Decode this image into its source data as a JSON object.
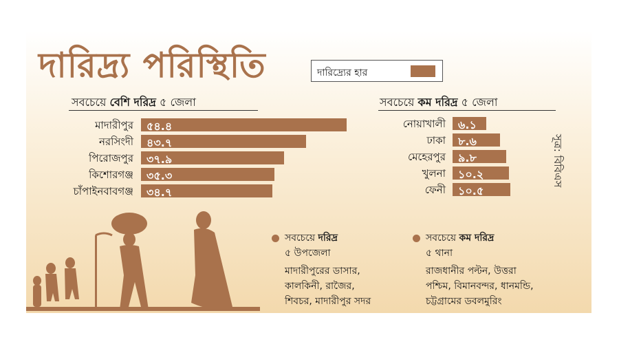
{
  "title": "দারিদ্র্য পরিস্থিতি",
  "legend": {
    "label": "দারিদ্র্যের হার",
    "color": "#a9724c"
  },
  "source": "সূত্র: বিবিএস",
  "chart_data": [
    {
      "type": "bar",
      "orientation": "horizontal",
      "title_prefix": "সবচেয়ে",
      "title_bold": "বেশি দরিদ্র",
      "title_suffix": "৫ জেলা",
      "categories": [
        "মাদারীপুর",
        "নরসিংদী",
        "পিরোজপুর",
        "কিশোরগঞ্জ",
        "চাঁপাইনবাবগঞ্জ"
      ],
      "value_labels": [
        "৫৪.৪",
        "৪৩.৭",
        "৩৭.৯",
        "৩৫.৩",
        "৩৪.৭"
      ],
      "values": [
        54.4,
        43.7,
        37.9,
        35.3,
        34.7
      ]
    },
    {
      "type": "bar",
      "orientation": "horizontal",
      "title_prefix": "সবচেয়ে",
      "title_bold": "কম দরিদ্র",
      "title_suffix": "৫ জেলা",
      "categories": [
        "নোয়াখালী",
        "ঢাকা",
        "মেহেরপুর",
        "খুলনা",
        "ফেনী"
      ],
      "value_labels": [
        "৬.১",
        "৮.৬",
        "৯.৮",
        "১০.২",
        "১০.৫"
      ],
      "values": [
        6.1,
        8.6,
        9.8,
        10.2,
        10.5
      ]
    }
  ],
  "info_left": {
    "prefix": "সবচেয়ে",
    "bold": "দরিদ্র",
    "line2": "৫ উপজেলা",
    "body": [
      "মাদারীপুরের ডাসার,",
      "কালকিনী, রাজৈর,",
      "শিবচর, মাদারীপুর সদর"
    ]
  },
  "info_right": {
    "prefix": "সবচেয়ে",
    "bold": "কম দরিদ্র",
    "line2": "৫ থানা",
    "body": [
      "রাজধানীর পল্টন, উত্তরা",
      "পশ্চিম, বিমানবন্দর, ধানমন্ডি,",
      "চট্টগ্রামের ডবলমুরিং"
    ]
  }
}
